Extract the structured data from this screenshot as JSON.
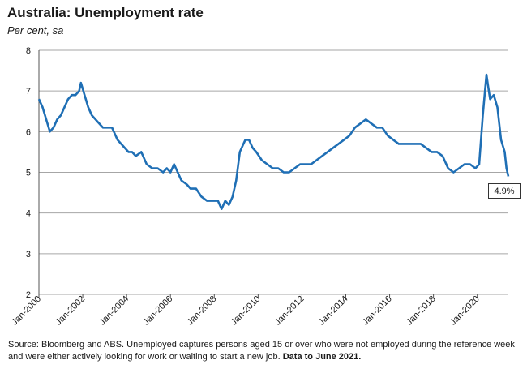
{
  "title": "Australia: Unemployment rate",
  "subtitle": "Per cent, sa",
  "source": {
    "text": "Source: Bloomberg and ABS.  Unemployed captures persons aged 15 or over who were not employed during the reference week and were either actively looking for work or waiting to start a new job.",
    "bold": "Data to June 2021."
  },
  "colors": {
    "line": "#1f6fb5",
    "grid": "#a6a6a6"
  },
  "chart_data": {
    "type": "line",
    "title": "Australia: Unemployment rate",
    "ylabel": "Per cent, sa",
    "ylim": [
      2,
      8
    ],
    "yticks": [
      "2",
      "3",
      "4",
      "5",
      "6",
      "7",
      "8"
    ],
    "xlim": [
      "2000-01",
      "2021-06"
    ],
    "xticks": [
      "Jan-2000",
      "Jan-2002",
      "Jan-2004",
      "Jan-2006",
      "Jan-2008",
      "Jan-2010",
      "Jan-2012",
      "Jan-2014",
      "Jan-2016",
      "Jan-2018",
      "Jan-2020"
    ],
    "grid": "horizontal",
    "last_value_label": "4.9%",
    "series": [
      {
        "points": [
          [
            "2000-01",
            6.8
          ],
          [
            "2000-03",
            6.6
          ],
          [
            "2000-05",
            6.3
          ],
          [
            "2000-07",
            6.0
          ],
          [
            "2000-09",
            6.1
          ],
          [
            "2000-11",
            6.3
          ],
          [
            "2001-01",
            6.4
          ],
          [
            "2001-03",
            6.6
          ],
          [
            "2001-05",
            6.8
          ],
          [
            "2001-07",
            6.9
          ],
          [
            "2001-09",
            6.9
          ],
          [
            "2001-11",
            7.0
          ],
          [
            "2001-12",
            7.2
          ],
          [
            "2002-02",
            6.9
          ],
          [
            "2002-04",
            6.6
          ],
          [
            "2002-06",
            6.4
          ],
          [
            "2002-08",
            6.3
          ],
          [
            "2002-10",
            6.2
          ],
          [
            "2002-12",
            6.1
          ],
          [
            "2003-02",
            6.1
          ],
          [
            "2003-05",
            6.1
          ],
          [
            "2003-08",
            5.8
          ],
          [
            "2003-10",
            5.7
          ],
          [
            "2003-12",
            5.6
          ],
          [
            "2004-02",
            5.5
          ],
          [
            "2004-04",
            5.5
          ],
          [
            "2004-06",
            5.4
          ],
          [
            "2004-09",
            5.5
          ],
          [
            "2004-12",
            5.2
          ],
          [
            "2005-03",
            5.1
          ],
          [
            "2005-06",
            5.1
          ],
          [
            "2005-09",
            5.0
          ],
          [
            "2005-11",
            5.1
          ],
          [
            "2006-01",
            5.0
          ],
          [
            "2006-03",
            5.2
          ],
          [
            "2006-05",
            5.0
          ],
          [
            "2006-07",
            4.8
          ],
          [
            "2006-10",
            4.7
          ],
          [
            "2006-12",
            4.6
          ],
          [
            "2007-03",
            4.6
          ],
          [
            "2007-06",
            4.4
          ],
          [
            "2007-09",
            4.3
          ],
          [
            "2007-12",
            4.3
          ],
          [
            "2008-03",
            4.3
          ],
          [
            "2008-05",
            4.1
          ],
          [
            "2008-07",
            4.3
          ],
          [
            "2008-09",
            4.2
          ],
          [
            "2008-11",
            4.4
          ],
          [
            "2009-01",
            4.8
          ],
          [
            "2009-03",
            5.5
          ],
          [
            "2009-05",
            5.7
          ],
          [
            "2009-06",
            5.8
          ],
          [
            "2009-08",
            5.8
          ],
          [
            "2009-10",
            5.6
          ],
          [
            "2009-12",
            5.5
          ],
          [
            "2010-03",
            5.3
          ],
          [
            "2010-06",
            5.2
          ],
          [
            "2010-09",
            5.1
          ],
          [
            "2010-12",
            5.1
          ],
          [
            "2011-03",
            5.0
          ],
          [
            "2011-06",
            5.0
          ],
          [
            "2011-09",
            5.1
          ],
          [
            "2011-12",
            5.2
          ],
          [
            "2012-03",
            5.2
          ],
          [
            "2012-06",
            5.2
          ],
          [
            "2012-09",
            5.3
          ],
          [
            "2012-12",
            5.4
          ],
          [
            "2013-03",
            5.5
          ],
          [
            "2013-06",
            5.6
          ],
          [
            "2013-09",
            5.7
          ],
          [
            "2013-12",
            5.8
          ],
          [
            "2014-03",
            5.9
          ],
          [
            "2014-06",
            6.1
          ],
          [
            "2014-09",
            6.2
          ],
          [
            "2014-12",
            6.3
          ],
          [
            "2015-03",
            6.2
          ],
          [
            "2015-06",
            6.1
          ],
          [
            "2015-09",
            6.1
          ],
          [
            "2015-12",
            5.9
          ],
          [
            "2016-03",
            5.8
          ],
          [
            "2016-06",
            5.7
          ],
          [
            "2016-09",
            5.7
          ],
          [
            "2016-12",
            5.7
          ],
          [
            "2017-03",
            5.7
          ],
          [
            "2017-06",
            5.7
          ],
          [
            "2017-09",
            5.6
          ],
          [
            "2017-12",
            5.5
          ],
          [
            "2018-03",
            5.5
          ],
          [
            "2018-06",
            5.4
          ],
          [
            "2018-09",
            5.1
          ],
          [
            "2018-12",
            5.0
          ],
          [
            "2019-03",
            5.1
          ],
          [
            "2019-06",
            5.2
          ],
          [
            "2019-09",
            5.2
          ],
          [
            "2019-12",
            5.1
          ],
          [
            "2020-02",
            5.2
          ],
          [
            "2020-04",
            6.4
          ],
          [
            "2020-06",
            7.4
          ],
          [
            "2020-07",
            7.1
          ],
          [
            "2020-08",
            6.8
          ],
          [
            "2020-10",
            6.9
          ],
          [
            "2020-12",
            6.6
          ],
          [
            "2021-02",
            5.8
          ],
          [
            "2021-04",
            5.5
          ],
          [
            "2021-05",
            5.1
          ],
          [
            "2021-06",
            4.9
          ]
        ]
      }
    ]
  }
}
